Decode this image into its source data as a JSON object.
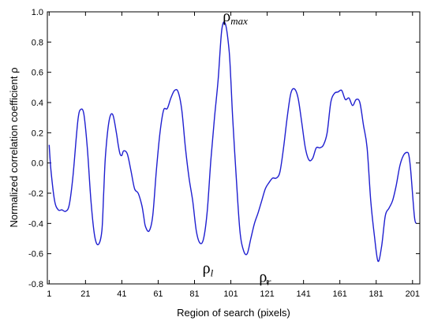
{
  "chart_data": {
    "type": "line",
    "xlabel": "Region of search  (pixels)",
    "ylabel": "Normalized correlation coefficient ρ",
    "xlim": [
      0,
      205
    ],
    "ylim": [
      -0.8,
      1.0
    ],
    "xticks": [
      1,
      21,
      41,
      61,
      81,
      101,
      121,
      141,
      161,
      181,
      201
    ],
    "xtick_labels": [
      "1",
      "21",
      "41",
      "61",
      "81",
      "101",
      "121",
      "141",
      "161",
      "181",
      "201"
    ],
    "yticks": [
      -0.8,
      -0.6,
      -0.4,
      -0.2,
      0.0,
      0.2,
      0.4,
      0.6,
      0.8,
      1.0
    ],
    "ytick_labels": [
      "-0.8",
      "-0.6",
      "-0.4",
      "-0.2",
      "0.0",
      "0.2",
      "0.4",
      "0.6",
      "0.8",
      "1.0"
    ],
    "grid": false,
    "series": [
      {
        "color": "#1f1fd0",
        "x": [
          1,
          2,
          4,
          6,
          8,
          10,
          12,
          14,
          16,
          17,
          18,
          20,
          22,
          24,
          26,
          28,
          30,
          31,
          32,
          34,
          36,
          38,
          39,
          40,
          41,
          42,
          44,
          46,
          48,
          50,
          52,
          53,
          54,
          56,
          58,
          60,
          62,
          64,
          66,
          68,
          70,
          72,
          74,
          76,
          78,
          80,
          82,
          84,
          86,
          88,
          90,
          92,
          94,
          96,
          98,
          100,
          101,
          102,
          104,
          106,
          108,
          110,
          112,
          114,
          116,
          118,
          120,
          122,
          124,
          126,
          128,
          130,
          132,
          134,
          136,
          138,
          140,
          142,
          144,
          146,
          148,
          150,
          152,
          154,
          156,
          158,
          160,
          162,
          164,
          166,
          168,
          170,
          172,
          174,
          176,
          178,
          180,
          182,
          184,
          186,
          188,
          190,
          192,
          194,
          196,
          198,
          199,
          200,
          202,
          203
        ],
        "y": [
          0.12,
          -0.05,
          -0.25,
          -0.31,
          -0.31,
          -0.32,
          -0.28,
          -0.1,
          0.18,
          0.3,
          0.35,
          0.33,
          0.1,
          -0.25,
          -0.48,
          -0.54,
          -0.45,
          -0.2,
          0.05,
          0.28,
          0.32,
          0.2,
          0.12,
          0.06,
          0.05,
          0.08,
          0.06,
          -0.05,
          -0.17,
          -0.2,
          -0.28,
          -0.35,
          -0.42,
          -0.45,
          -0.35,
          -0.05,
          0.2,
          0.35,
          0.36,
          0.43,
          0.48,
          0.47,
          0.35,
          0.1,
          -0.1,
          -0.25,
          -0.45,
          -0.53,
          -0.5,
          -0.32,
          0.02,
          0.3,
          0.55,
          0.88,
          0.92,
          0.75,
          0.55,
          0.3,
          -0.1,
          -0.45,
          -0.58,
          -0.6,
          -0.5,
          -0.4,
          -0.33,
          -0.25,
          -0.17,
          -0.13,
          -0.1,
          -0.1,
          -0.06,
          0.1,
          0.3,
          0.46,
          0.49,
          0.43,
          0.27,
          0.1,
          0.02,
          0.03,
          0.1,
          0.1,
          0.12,
          0.2,
          0.4,
          0.46,
          0.47,
          0.48,
          0.42,
          0.43,
          0.38,
          0.42,
          0.4,
          0.25,
          0.1,
          -0.25,
          -0.48,
          -0.65,
          -0.55,
          -0.35,
          -0.3,
          -0.25,
          -0.15,
          -0.02,
          0.05,
          0.07,
          0.05,
          -0.05,
          -0.35,
          -0.4
        ]
      }
    ],
    "annotations": [
      {
        "main": "ρ",
        "sub": "max",
        "x": 100,
        "y": 0.92
      },
      {
        "main": "ρ",
        "sub": "l",
        "x": 88,
        "y": -0.53
      },
      {
        "main": "ρ",
        "sub": "r",
        "x": 117,
        "y": -0.6
      }
    ]
  }
}
